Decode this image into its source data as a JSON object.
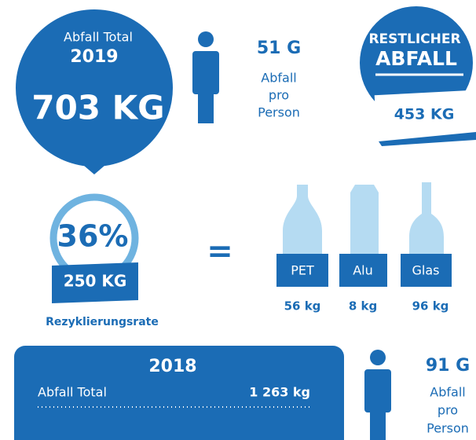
{
  "current": {
    "label": "Abfall Total",
    "year": "2019",
    "total": "703 KG"
  },
  "per_person": {
    "amount": "51 G",
    "lines": [
      "Abfall",
      "pro",
      "Person"
    ]
  },
  "residual": {
    "title_lines": [
      "RESTLICHER",
      "ABFALL"
    ],
    "amount": "453 KG"
  },
  "recycling": {
    "rate": "36%",
    "amount": "250 KG",
    "label": "Rezyklierungsrate",
    "equals": "=",
    "items": [
      {
        "name": "PET",
        "amount": "56 kg"
      },
      {
        "name": "Alu",
        "amount": "8 kg"
      },
      {
        "name": "Glas",
        "amount": "96 kg"
      }
    ]
  },
  "previous": {
    "year": "2018",
    "label": "Abfall Total",
    "total": "1 263 kg",
    "per_person": {
      "amount": "91 G",
      "lines": [
        "Abfall",
        "pro",
        "Person"
      ]
    }
  }
}
